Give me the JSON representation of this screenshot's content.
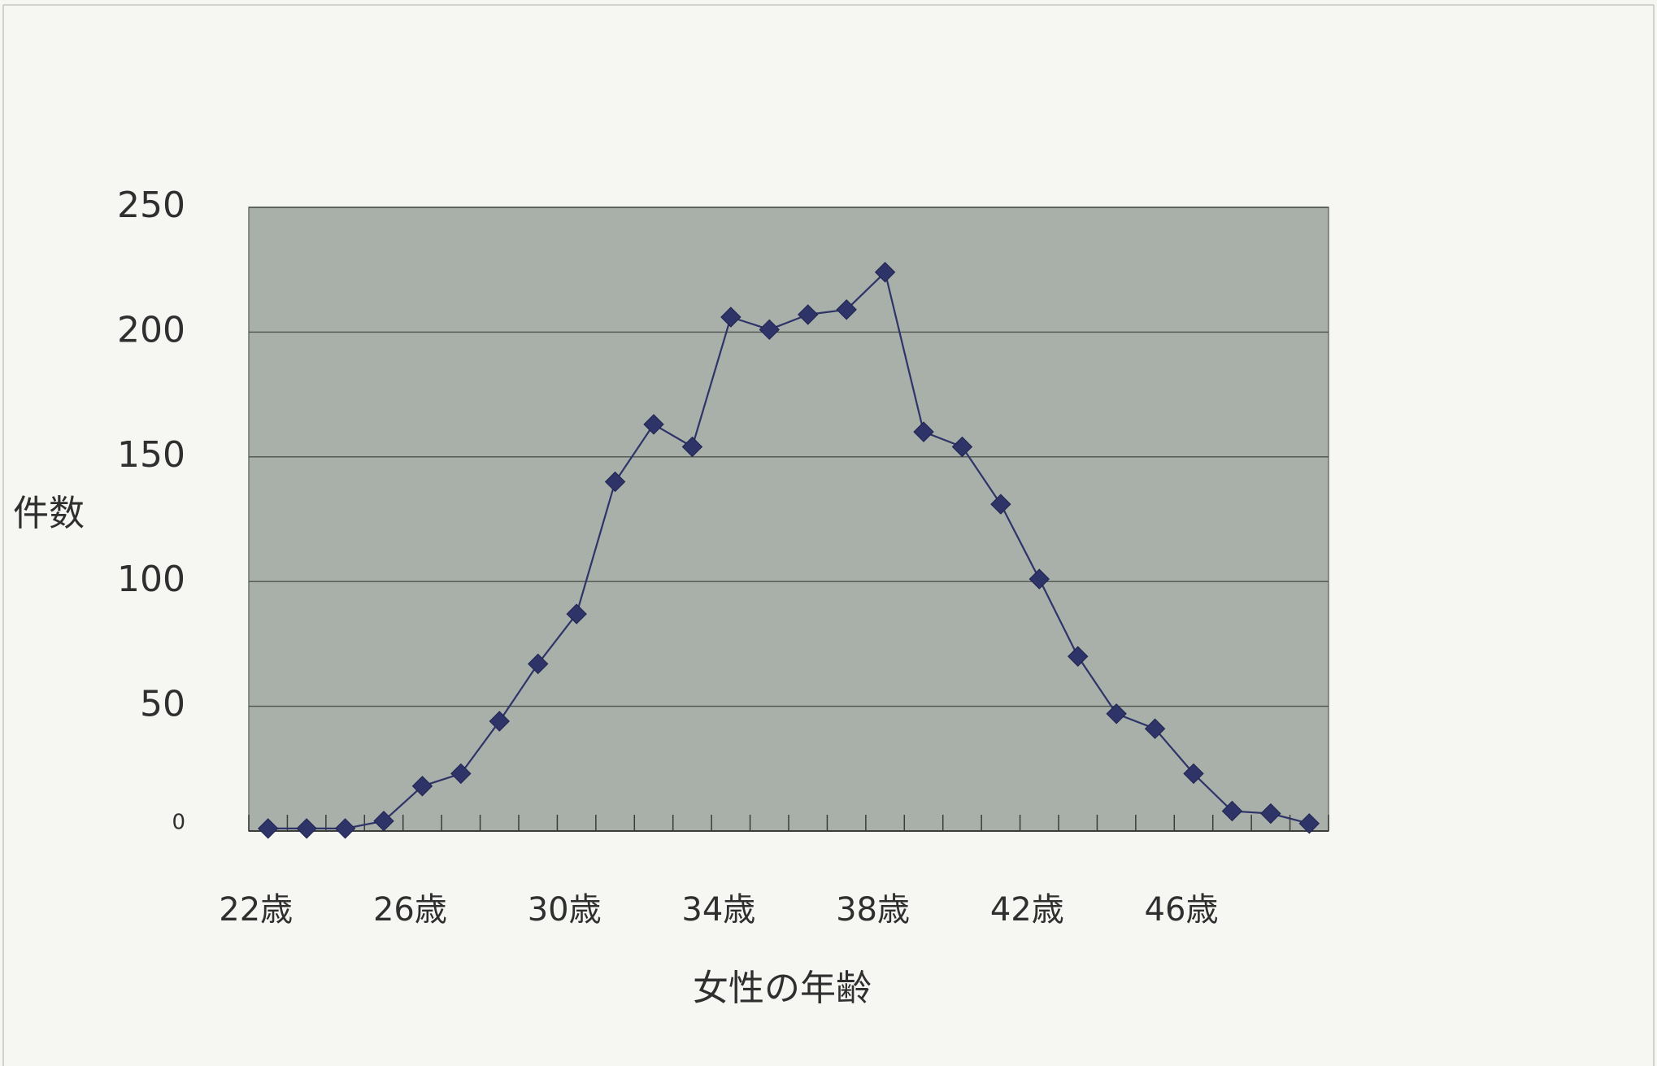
{
  "chart_data": {
    "type": "line",
    "title": "",
    "xlabel": "女性の年齢",
    "ylabel": "件数",
    "x": [
      22,
      23,
      24,
      25,
      26,
      27,
      28,
      29,
      30,
      31,
      32,
      33,
      34,
      35,
      36,
      37,
      38,
      39,
      40,
      41,
      42,
      43,
      44,
      45,
      46,
      47,
      48,
      49
    ],
    "values": [
      1,
      1,
      1,
      4,
      18,
      23,
      44,
      67,
      87,
      140,
      163,
      154,
      206,
      201,
      207,
      209,
      224,
      160,
      154,
      131,
      101,
      70,
      47,
      41,
      23,
      8,
      7,
      3
    ],
    "x_ticks": [
      22,
      26,
      30,
      34,
      38,
      42,
      46
    ],
    "x_tick_labels": [
      "22歳",
      "26歳",
      "30歳",
      "34歳",
      "38歳",
      "42歳",
      "46歳"
    ],
    "y_ticks": [
      0,
      50,
      100,
      150,
      200,
      250
    ],
    "ylim": [
      0,
      250
    ],
    "grid": true,
    "legend": "none",
    "marker": "diamond",
    "colors": {
      "line": "#2e3468",
      "marker": "#2e3468",
      "plot_background": "#a9afa9",
      "gridline": "#4d524d",
      "axis": "#3a3d3a",
      "page_background": "#f6f7f2"
    }
  }
}
